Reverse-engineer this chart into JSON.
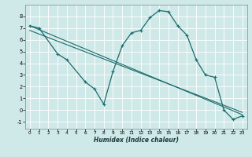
{
  "xlabel": "Humidex (Indice chaleur)",
  "background_color": "#cfe9e9",
  "grid_color": "#ffffff",
  "line_color": "#1a6b6b",
  "xlim": [
    -0.5,
    23.5
  ],
  "ylim": [
    -1.6,
    9.0
  ],
  "xticks": [
    0,
    1,
    2,
    3,
    4,
    5,
    6,
    7,
    8,
    9,
    10,
    11,
    12,
    13,
    14,
    15,
    16,
    17,
    18,
    19,
    20,
    21,
    22,
    23
  ],
  "yticks": [
    -1,
    0,
    1,
    2,
    3,
    4,
    5,
    6,
    7,
    8
  ],
  "curve_x": [
    0,
    1,
    3,
    4,
    6,
    7,
    8,
    9,
    10,
    11,
    12,
    13,
    14,
    15,
    16,
    17,
    18,
    19,
    20,
    21,
    22,
    23
  ],
  "curve_y": [
    7.2,
    7.0,
    4.8,
    4.3,
    2.4,
    1.8,
    0.5,
    3.3,
    5.5,
    6.6,
    6.8,
    7.9,
    8.5,
    8.4,
    7.2,
    6.4,
    4.3,
    3.0,
    2.8,
    0.0,
    -0.8,
    -0.5
  ],
  "line1_x": [
    0,
    23
  ],
  "line1_y": [
    7.2,
    -0.4
  ],
  "line2_x": [
    0,
    23
  ],
  "line2_y": [
    6.8,
    -0.2
  ]
}
